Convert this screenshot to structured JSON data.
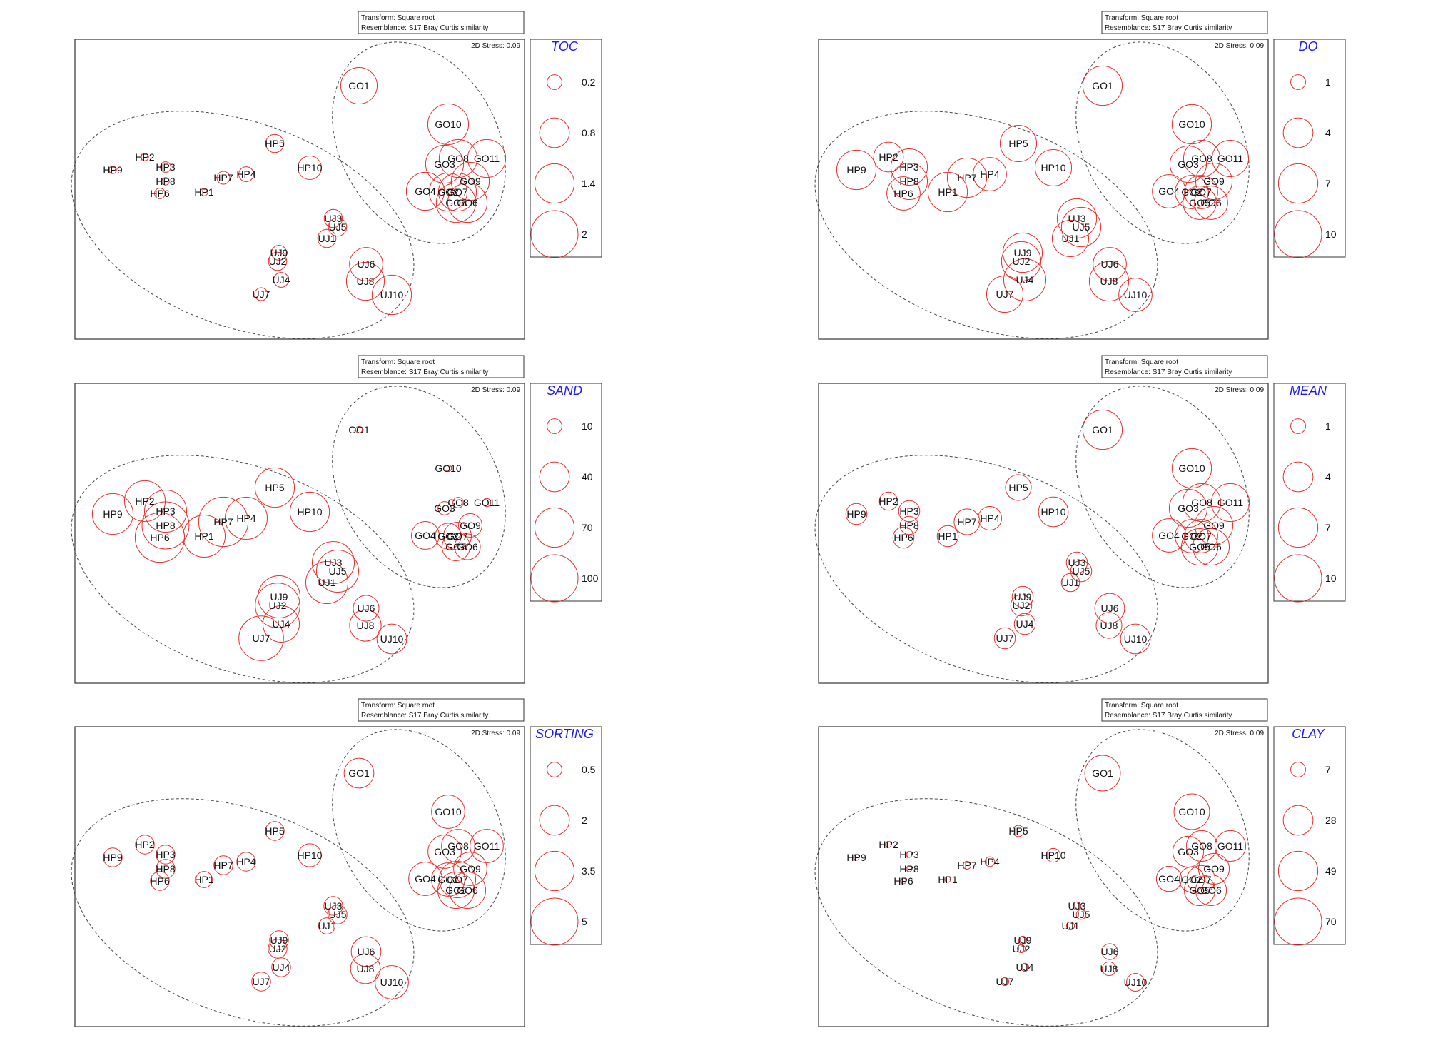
{
  "chart_common": {
    "transform_label": "Transform: Square root",
    "resemblance_label": "Resemblance: S17 Bray Curtis similarity",
    "stress_label": "2D Stress: 0.09",
    "colors": {
      "bubble": "#e8302c",
      "legend_title": "#1a1aff",
      "axis": "#333333",
      "ellipse": "#444444",
      "text": "#111111"
    }
  },
  "sites": [
    "GO1",
    "GO10",
    "GO8",
    "GO11",
    "GO3",
    "GO9",
    "GO4",
    "GO2",
    "GO7",
    "GO5",
    "GO6",
    "HP9",
    "HP2",
    "HP3",
    "HP8",
    "HP6",
    "HP5",
    "HP7",
    "HP4",
    "HP1",
    "HP10",
    "UJ3",
    "UJ5",
    "UJ1",
    "UJ9",
    "UJ2",
    "UJ4",
    "UJ7",
    "UJ6",
    "UJ8",
    "UJ10"
  ],
  "chart_data": [
    {
      "type": "scatter",
      "title": "",
      "variable": "TOC",
      "legend_values": [
        "0.2",
        "0.8",
        "1.4",
        "2"
      ],
      "values": {
        "GO1": 1.2,
        "GO10": 1.5,
        "GO8": 1.3,
        "GO11": 1.3,
        "GO3": 1.3,
        "GO9": 1.3,
        "GO4": 1.3,
        "GO2": 1.3,
        "GO7": 1.3,
        "GO5": 1.4,
        "GO6": 1.4,
        "HP9": 0.05,
        "HP2": 0.05,
        "HP3": 0.1,
        "HP8": 0.05,
        "HP6": 0.1,
        "HP5": 0.3,
        "HP7": 0.15,
        "HP4": 0.2,
        "HP1": 0.05,
        "HP10": 0.5,
        "UJ3": 0.3,
        "UJ5": 0.3,
        "UJ1": 0.3,
        "UJ9": 0.2,
        "UJ2": 0.3,
        "UJ4": 0.2,
        "UJ7": 0.15,
        "UJ6": 1.0,
        "UJ8": 1.3,
        "UJ10": 1.4
      }
    },
    {
      "type": "scatter",
      "title": "",
      "variable": "DO",
      "legend_values": [
        "1",
        "4",
        "7",
        "10"
      ],
      "values": {
        "GO1": 7,
        "GO10": 7,
        "GO8": 6,
        "GO11": 6,
        "GO3": 6,
        "GO9": 6,
        "GO4": 5,
        "GO2": 5,
        "GO7": 5,
        "GO5": 5,
        "GO6": 5,
        "HP9": 7,
        "HP2": 4,
        "HP3": 6,
        "HP8": 6,
        "HP6": 5,
        "HP5": 6,
        "HP7": 7,
        "HP4": 5,
        "HP1": 7,
        "HP10": 6,
        "UJ3": 7,
        "UJ5": 7,
        "UJ1": 6,
        "UJ9": 7,
        "UJ2": 7,
        "UJ4": 8,
        "UJ7": 6,
        "UJ6": 5,
        "UJ8": 7,
        "UJ10": 5
      }
    },
    {
      "type": "scatter",
      "title": "",
      "variable": "SAND",
      "legend_values": [
        "10",
        "40",
        "70",
        "100"
      ],
      "values": {
        "GO1": 2,
        "GO10": 2,
        "GO8": 5,
        "GO11": 3,
        "GO3": 8,
        "GO9": 25,
        "GO4": 35,
        "GO2": 30,
        "GO7": 35,
        "GO5": 35,
        "GO6": 30,
        "HP9": 75,
        "HP2": 75,
        "HP3": 80,
        "HP8": 100,
        "HP6": 110,
        "HP5": 70,
        "HP7": 110,
        "HP4": 80,
        "HP1": 80,
        "HP10": 70,
        "UJ3": 80,
        "UJ5": 80,
        "UJ1": 80,
        "UJ9": 80,
        "UJ2": 90,
        "UJ4": 60,
        "UJ7": 90,
        "UJ6": 30,
        "UJ8": 45,
        "UJ10": 40
      }
    },
    {
      "type": "scatter",
      "title": "",
      "variable": "MEAN",
      "legend_values": [
        "1",
        "4",
        "7",
        "10"
      ],
      "values": {
        "GO1": 7,
        "GO10": 7,
        "GO8": 6.5,
        "GO11": 6.5,
        "GO3": 6.5,
        "GO9": 6.5,
        "GO4": 5,
        "GO2": 5,
        "GO7": 5,
        "GO5": 6,
        "GO6": 6,
        "HP9": 2,
        "HP2": 1.5,
        "HP3": 2,
        "HP8": 1.5,
        "HP6": 2,
        "HP5": 3,
        "HP7": 3,
        "HP4": 2.5,
        "HP1": 2,
        "HP10": 4,
        "UJ3": 2,
        "UJ5": 2,
        "UJ1": 1.5,
        "UJ9": 2,
        "UJ2": 2,
        "UJ4": 2,
        "UJ7": 2,
        "UJ6": 4,
        "UJ8": 3,
        "UJ10": 4
      }
    },
    {
      "type": "scatter",
      "title": "",
      "variable": "SORTING",
      "legend_values": [
        "0.5",
        "2",
        "3.5",
        "5"
      ],
      "values": {
        "GO1": 2,
        "GO10": 2.5,
        "GO8": 2.5,
        "GO11": 2.5,
        "GO3": 2.5,
        "GO9": 2.5,
        "GO4": 2.5,
        "GO2": 2.5,
        "GO7": 3,
        "GO5": 3,
        "GO6": 3,
        "HP9": 0.8,
        "HP2": 0.8,
        "HP3": 0.8,
        "HP8": 0.8,
        "HP6": 0.8,
        "HP5": 0.8,
        "HP7": 0.8,
        "HP4": 0.8,
        "HP1": 0.6,
        "HP10": 1.2,
        "UJ3": 0.8,
        "UJ5": 0.8,
        "UJ1": 0.6,
        "UJ9": 0.8,
        "UJ2": 0.8,
        "UJ4": 0.8,
        "UJ7": 0.8,
        "UJ6": 2,
        "UJ8": 2,
        "UJ10": 2.5
      }
    },
    {
      "type": "scatter",
      "title": "",
      "variable": "CLAY",
      "legend_values": [
        "7",
        "28",
        "49",
        "70"
      ],
      "values": {
        "GO1": 40,
        "GO10": 40,
        "GO8": 30,
        "GO11": 30,
        "GO3": 30,
        "GO9": 30,
        "GO4": 20,
        "GO2": 20,
        "GO7": 25,
        "GO5": 30,
        "GO6": 30,
        "HP9": 1,
        "HP2": 1,
        "HP3": 1,
        "HP8": 1,
        "HP6": 1,
        "HP5": 4,
        "HP7": 2,
        "HP4": 3,
        "HP1": 1,
        "HP10": 6,
        "UJ3": 2,
        "UJ5": 3,
        "UJ1": 2,
        "UJ9": 2,
        "UJ2": 2,
        "UJ4": 2,
        "UJ7": 2,
        "UJ6": 8,
        "UJ8": 6,
        "UJ10": 10
      }
    }
  ]
}
